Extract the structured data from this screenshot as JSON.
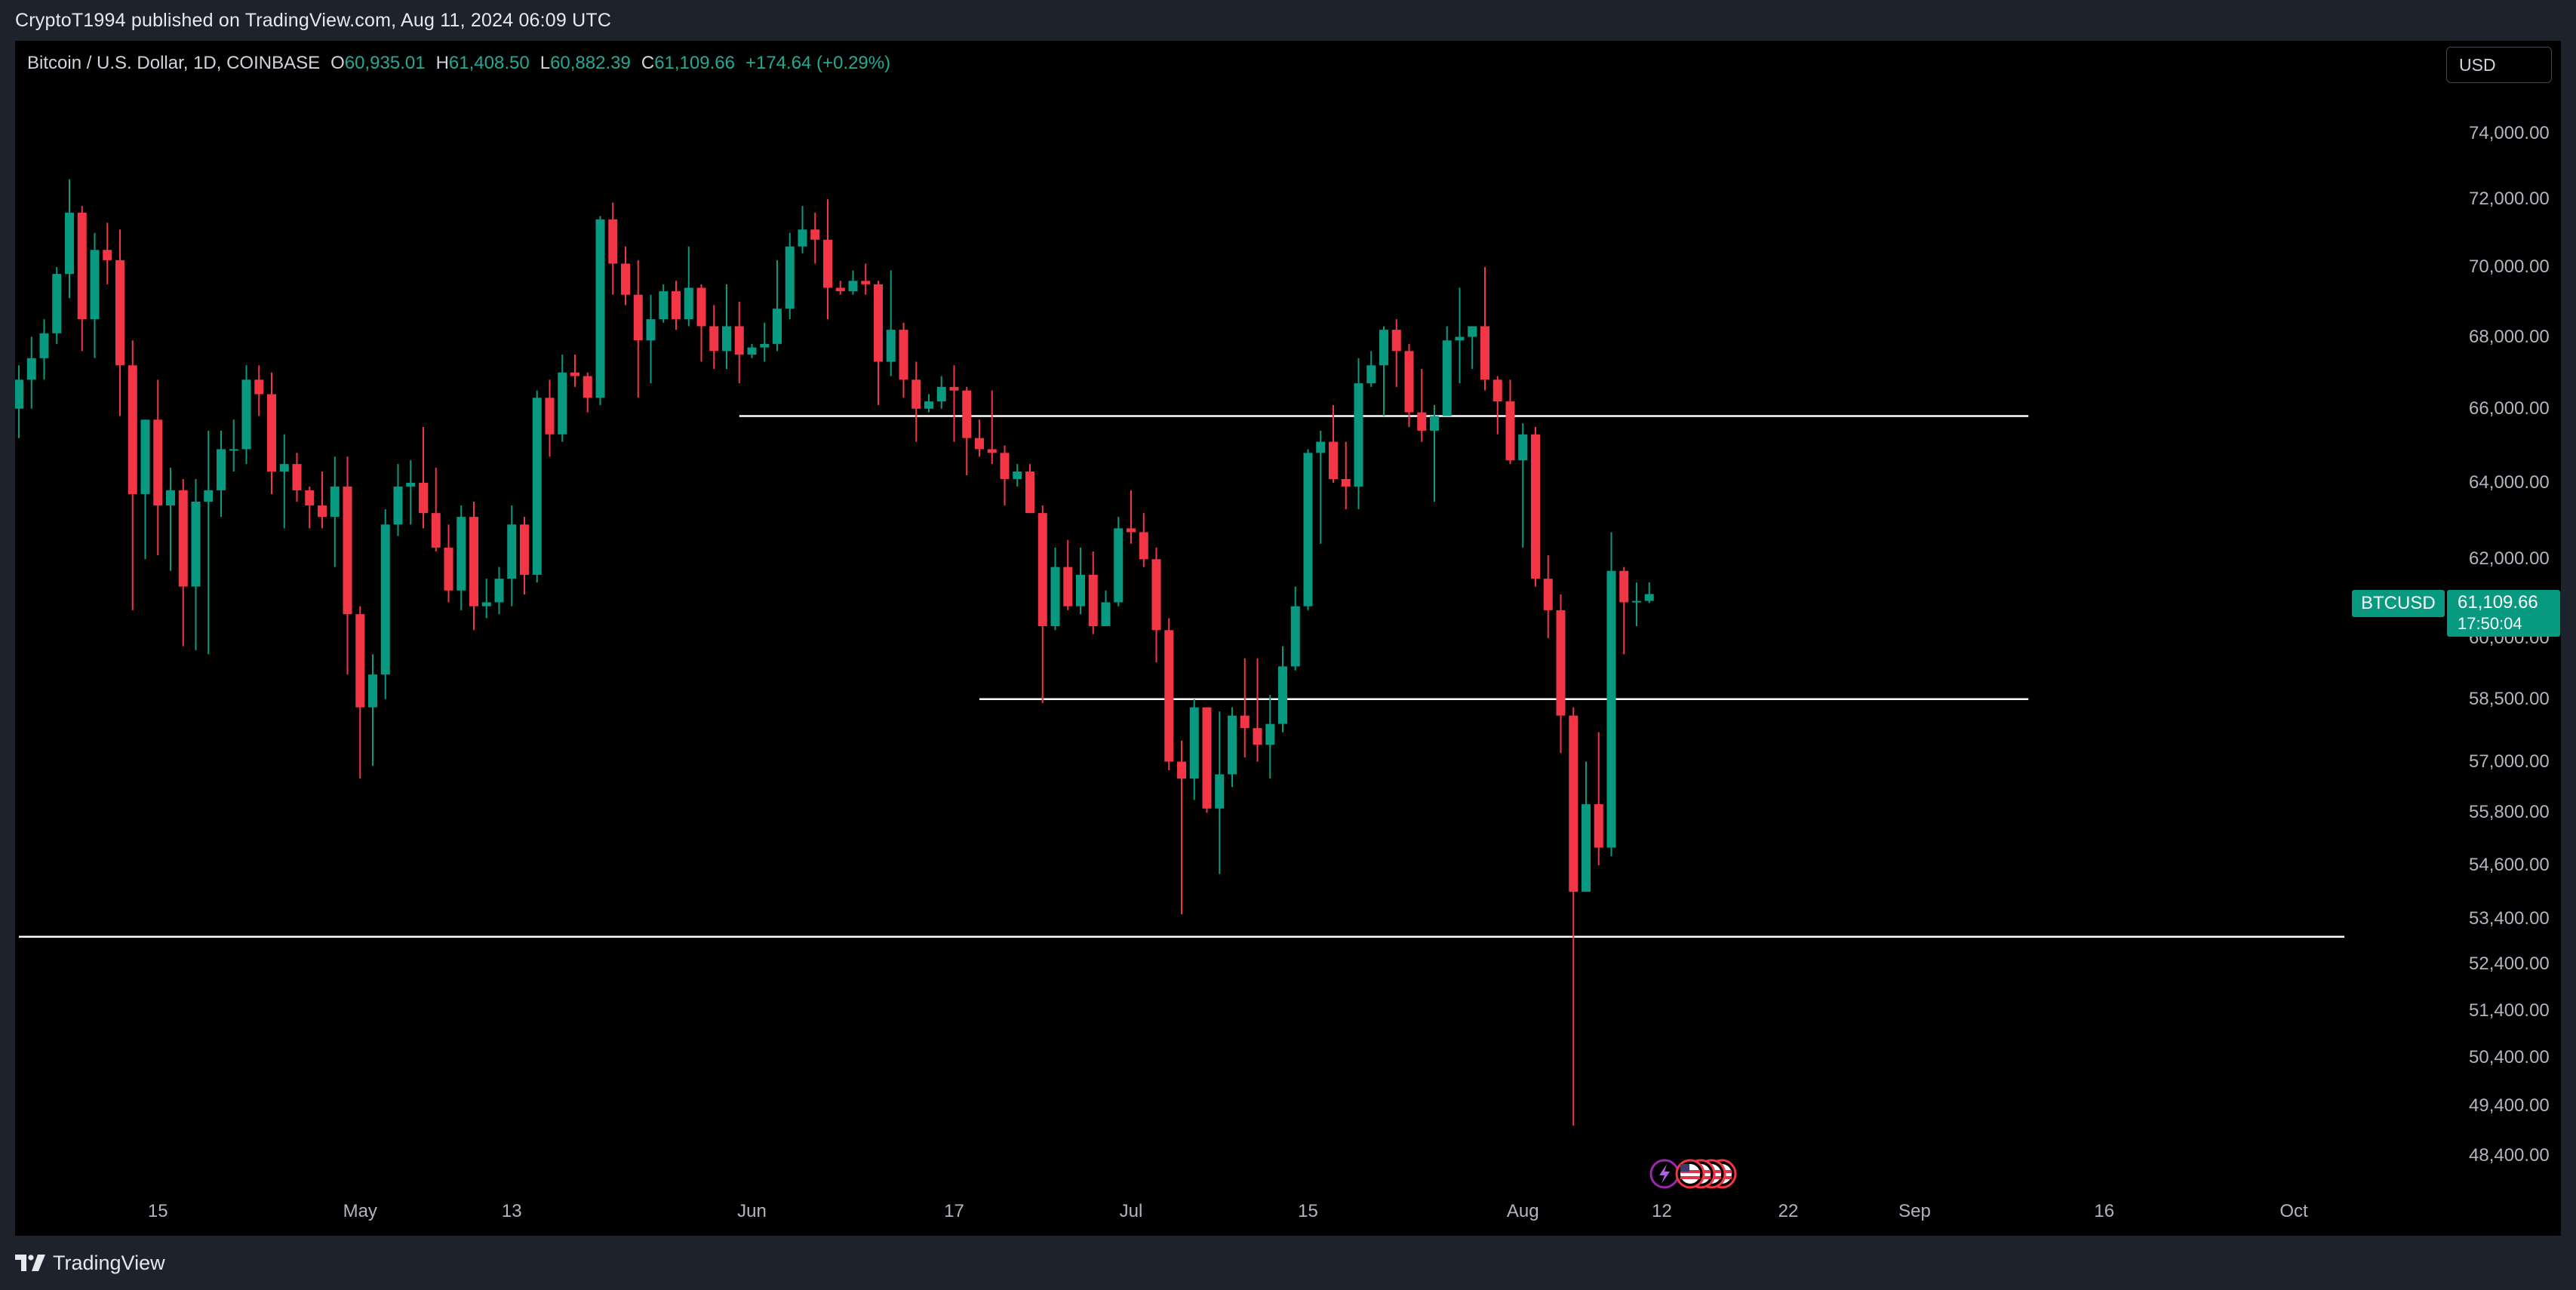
{
  "header": {
    "publisher_line": "CryptoT1994 published on TradingView.com, Aug 11, 2024 06:09 UTC"
  },
  "legend": {
    "symbol": "Bitcoin / U.S. Dollar, 1D, COINBASE",
    "open_label": "O",
    "open": "60,935.01",
    "high_label": "H",
    "high": "61,408.50",
    "low_label": "L",
    "low": "60,882.39",
    "close_label": "C",
    "close": "61,109.66",
    "change": "+174.64 (+0.29%)"
  },
  "currency_button": "USD",
  "last_price": {
    "symbol": "BTCUSD",
    "price": "61,109.66",
    "countdown": "17:50:04"
  },
  "price_axis": [
    "74,000.00",
    "72,000.00",
    "70,000.00",
    "68,000.00",
    "66,000.00",
    "64,000.00",
    "62,000.00",
    "60,000.00",
    "58,500.00",
    "57,000.00",
    "55,800.00",
    "54,600.00",
    "53,400.00",
    "52,400.00",
    "51,400.00",
    "50,400.00",
    "49,400.00",
    "48,400.00"
  ],
  "time_axis": [
    "15",
    "May",
    "13",
    "Jun",
    "17",
    "Jul",
    "15",
    "Aug",
    "12",
    "22",
    "Sep",
    "16",
    "Oct"
  ],
  "footer": {
    "brand": "TradingView"
  },
  "colors": {
    "up": "#089981",
    "down": "#f23645",
    "background": "#000000",
    "frame": "#1e222d",
    "line": "#ffffff"
  },
  "event_icons": [
    "lightning-icon",
    "us-flag-icon",
    "us-flag-icon",
    "us-flag-icon",
    "us-flag-icon"
  ],
  "chart_data": {
    "type": "candlestick",
    "symbol": "BTCUSD",
    "interval": "1D",
    "candles": [
      {
        "date": "2024-04-04",
        "open": 66000,
        "high": 67200,
        "low": 65200,
        "close": 66800
      },
      {
        "date": "2024-04-05",
        "open": 66800,
        "high": 68000,
        "low": 66000,
        "close": 67400
      },
      {
        "date": "2024-04-06",
        "open": 67400,
        "high": 68500,
        "low": 66800,
        "close": 68100
      },
      {
        "date": "2024-04-07",
        "open": 68100,
        "high": 70000,
        "low": 67800,
        "close": 69800
      },
      {
        "date": "2024-04-08",
        "open": 69800,
        "high": 72600,
        "low": 69100,
        "close": 71600
      },
      {
        "date": "2024-04-09",
        "open": 71600,
        "high": 71800,
        "low": 67600,
        "close": 68500
      },
      {
        "date": "2024-04-10",
        "open": 68500,
        "high": 71000,
        "low": 67400,
        "close": 70500
      },
      {
        "date": "2024-04-11",
        "open": 70500,
        "high": 71300,
        "low": 69500,
        "close": 70200
      },
      {
        "date": "2024-04-12",
        "open": 70200,
        "high": 71100,
        "low": 65800,
        "close": 67200
      },
      {
        "date": "2024-04-13",
        "open": 67200,
        "high": 67900,
        "low": 60700,
        "close": 63700
      },
      {
        "date": "2024-04-14",
        "open": 63700,
        "high": 65700,
        "low": 62000,
        "close": 65700
      },
      {
        "date": "2024-04-15",
        "open": 65700,
        "high": 66800,
        "low": 62100,
        "close": 63400
      },
      {
        "date": "2024-04-16",
        "open": 63400,
        "high": 64400,
        "low": 61700,
        "close": 63800
      },
      {
        "date": "2024-04-17",
        "open": 63800,
        "high": 64100,
        "low": 59800,
        "close": 61300
      },
      {
        "date": "2024-04-18",
        "open": 61300,
        "high": 64100,
        "low": 59700,
        "close": 63500
      },
      {
        "date": "2024-04-19",
        "open": 63500,
        "high": 65400,
        "low": 59600,
        "close": 63800
      },
      {
        "date": "2024-04-20",
        "open": 63800,
        "high": 65400,
        "low": 63100,
        "close": 64900
      },
      {
        "date": "2024-04-21",
        "open": 64900,
        "high": 65700,
        "low": 64300,
        "close": 64900
      },
      {
        "date": "2024-04-22",
        "open": 64900,
        "high": 67200,
        "low": 64500,
        "close": 66800
      },
      {
        "date": "2024-04-23",
        "open": 66800,
        "high": 67200,
        "low": 65800,
        "close": 66400
      },
      {
        "date": "2024-04-24",
        "open": 66400,
        "high": 67000,
        "low": 63700,
        "close": 64300
      },
      {
        "date": "2024-04-25",
        "open": 64300,
        "high": 65300,
        "low": 62800,
        "close": 64500
      },
      {
        "date": "2024-04-26",
        "open": 64500,
        "high": 64800,
        "low": 63500,
        "close": 63800
      },
      {
        "date": "2024-04-27",
        "open": 63800,
        "high": 63900,
        "low": 62800,
        "close": 63400
      },
      {
        "date": "2024-04-28",
        "open": 63400,
        "high": 64300,
        "low": 62800,
        "close": 63100
      },
      {
        "date": "2024-04-29",
        "open": 63100,
        "high": 64700,
        "low": 61800,
        "close": 63900
      },
      {
        "date": "2024-04-30",
        "open": 63900,
        "high": 64700,
        "low": 59100,
        "close": 60600
      },
      {
        "date": "2024-05-01",
        "open": 60600,
        "high": 60800,
        "low": 56600,
        "close": 58300
      },
      {
        "date": "2024-05-02",
        "open": 58300,
        "high": 59600,
        "low": 56900,
        "close": 59100
      },
      {
        "date": "2024-05-03",
        "open": 59100,
        "high": 63300,
        "low": 58500,
        "close": 62900
      },
      {
        "date": "2024-05-04",
        "open": 62900,
        "high": 64500,
        "low": 62600,
        "close": 63900
      },
      {
        "date": "2024-05-05",
        "open": 63900,
        "high": 64600,
        "low": 62900,
        "close": 64000
      },
      {
        "date": "2024-05-06",
        "open": 64000,
        "high": 65500,
        "low": 62800,
        "close": 63200
      },
      {
        "date": "2024-05-07",
        "open": 63200,
        "high": 64400,
        "low": 62200,
        "close": 62300
      },
      {
        "date": "2024-05-08",
        "open": 62300,
        "high": 62900,
        "low": 60900,
        "close": 61200
      },
      {
        "date": "2024-05-09",
        "open": 61200,
        "high": 63400,
        "low": 60700,
        "close": 63100
      },
      {
        "date": "2024-05-10",
        "open": 63100,
        "high": 63500,
        "low": 60200,
        "close": 60800
      },
      {
        "date": "2024-05-11",
        "open": 60800,
        "high": 61500,
        "low": 60500,
        "close": 60900
      },
      {
        "date": "2024-05-12",
        "open": 60900,
        "high": 61800,
        "low": 60600,
        "close": 61500
      },
      {
        "date": "2024-05-13",
        "open": 61500,
        "high": 63400,
        "low": 60800,
        "close": 62900
      },
      {
        "date": "2024-05-14",
        "open": 62900,
        "high": 63100,
        "low": 61100,
        "close": 61600
      },
      {
        "date": "2024-05-15",
        "open": 61600,
        "high": 66500,
        "low": 61400,
        "close": 66300
      },
      {
        "date": "2024-05-16",
        "open": 66300,
        "high": 66800,
        "low": 64700,
        "close": 65300
      },
      {
        "date": "2024-05-17",
        "open": 65300,
        "high": 67500,
        "low": 65100,
        "close": 67000
      },
      {
        "date": "2024-05-18",
        "open": 67000,
        "high": 67500,
        "low": 66600,
        "close": 66900
      },
      {
        "date": "2024-05-19",
        "open": 66900,
        "high": 67000,
        "low": 65900,
        "close": 66300
      },
      {
        "date": "2024-05-20",
        "open": 66300,
        "high": 71500,
        "low": 66100,
        "close": 71400
      },
      {
        "date": "2024-05-21",
        "open": 71400,
        "high": 71900,
        "low": 69200,
        "close": 70100
      },
      {
        "date": "2024-05-22",
        "open": 70100,
        "high": 70600,
        "low": 68900,
        "close": 69200
      },
      {
        "date": "2024-05-23",
        "open": 69200,
        "high": 70200,
        "low": 66300,
        "close": 67900
      },
      {
        "date": "2024-05-24",
        "open": 67900,
        "high": 69200,
        "low": 66700,
        "close": 68500
      },
      {
        "date": "2024-05-25",
        "open": 68500,
        "high": 69500,
        "low": 68400,
        "close": 69300
      },
      {
        "date": "2024-05-26",
        "open": 69300,
        "high": 69600,
        "low": 68200,
        "close": 68500
      },
      {
        "date": "2024-05-27",
        "open": 68500,
        "high": 70600,
        "low": 68300,
        "close": 69400
      },
      {
        "date": "2024-05-28",
        "open": 69400,
        "high": 69500,
        "low": 67300,
        "close": 68300
      },
      {
        "date": "2024-05-29",
        "open": 68300,
        "high": 68900,
        "low": 67100,
        "close": 67600
      },
      {
        "date": "2024-05-30",
        "open": 67600,
        "high": 69500,
        "low": 67100,
        "close": 68300
      },
      {
        "date": "2024-05-31",
        "open": 68300,
        "high": 69000,
        "low": 66700,
        "close": 67500
      },
      {
        "date": "2024-06-01",
        "open": 67500,
        "high": 67800,
        "low": 67400,
        "close": 67700
      },
      {
        "date": "2024-06-02",
        "open": 67700,
        "high": 68400,
        "low": 67300,
        "close": 67800
      },
      {
        "date": "2024-06-03",
        "open": 67800,
        "high": 70200,
        "low": 67600,
        "close": 68800
      },
      {
        "date": "2024-06-04",
        "open": 68800,
        "high": 71000,
        "low": 68500,
        "close": 70600
      },
      {
        "date": "2024-06-05",
        "open": 70600,
        "high": 71800,
        "low": 70400,
        "close": 71100
      },
      {
        "date": "2024-06-06",
        "open": 71100,
        "high": 71600,
        "low": 70100,
        "close": 70800
      },
      {
        "date": "2024-06-07",
        "open": 70800,
        "high": 72000,
        "low": 68500,
        "close": 69400
      },
      {
        "date": "2024-06-08",
        "open": 69400,
        "high": 69600,
        "low": 69200,
        "close": 69300
      },
      {
        "date": "2024-06-09",
        "open": 69300,
        "high": 69900,
        "low": 69200,
        "close": 69600
      },
      {
        "date": "2024-06-10",
        "open": 69600,
        "high": 70100,
        "low": 69200,
        "close": 69500
      },
      {
        "date": "2024-06-11",
        "open": 69500,
        "high": 69600,
        "low": 66100,
        "close": 67300
      },
      {
        "date": "2024-06-12",
        "open": 67300,
        "high": 69900,
        "low": 66900,
        "close": 68200
      },
      {
        "date": "2024-06-13",
        "open": 68200,
        "high": 68400,
        "low": 66300,
        "close": 66800
      },
      {
        "date": "2024-06-14",
        "open": 66800,
        "high": 67300,
        "low": 65100,
        "close": 66000
      },
      {
        "date": "2024-06-15",
        "open": 66000,
        "high": 66400,
        "low": 65900,
        "close": 66200
      },
      {
        "date": "2024-06-16",
        "open": 66200,
        "high": 66900,
        "low": 66000,
        "close": 66600
      },
      {
        "date": "2024-06-17",
        "open": 66600,
        "high": 67200,
        "low": 65100,
        "close": 66500
      },
      {
        "date": "2024-06-18",
        "open": 66500,
        "high": 66600,
        "low": 64200,
        "close": 65200
      },
      {
        "date": "2024-06-19",
        "open": 65200,
        "high": 65700,
        "low": 64700,
        "close": 64900
      },
      {
        "date": "2024-06-20",
        "open": 64900,
        "high": 66500,
        "low": 64500,
        "close": 64800
      },
      {
        "date": "2024-06-21",
        "open": 64800,
        "high": 65000,
        "low": 63400,
        "close": 64100
      },
      {
        "date": "2024-06-22",
        "open": 64100,
        "high": 64500,
        "low": 63900,
        "close": 64300
      },
      {
        "date": "2024-06-23",
        "open": 64300,
        "high": 64500,
        "low": 63200,
        "close": 63200
      },
      {
        "date": "2024-06-24",
        "open": 63200,
        "high": 63400,
        "low": 58400,
        "close": 60300
      },
      {
        "date": "2024-06-25",
        "open": 60300,
        "high": 62300,
        "low": 60200,
        "close": 61800
      },
      {
        "date": "2024-06-26",
        "open": 61800,
        "high": 62500,
        "low": 60700,
        "close": 60800
      },
      {
        "date": "2024-06-27",
        "open": 60800,
        "high": 62300,
        "low": 60600,
        "close": 61600
      },
      {
        "date": "2024-06-28",
        "open": 61600,
        "high": 62200,
        "low": 60100,
        "close": 60300
      },
      {
        "date": "2024-06-29",
        "open": 60300,
        "high": 61200,
        "low": 60300,
        "close": 60900
      },
      {
        "date": "2024-06-30",
        "open": 60900,
        "high": 63100,
        "low": 60800,
        "close": 62800
      },
      {
        "date": "2024-07-01",
        "open": 62800,
        "high": 63800,
        "low": 62400,
        "close": 62700
      },
      {
        "date": "2024-07-02",
        "open": 62700,
        "high": 63200,
        "low": 61800,
        "close": 62000
      },
      {
        "date": "2024-07-03",
        "open": 62000,
        "high": 62300,
        "low": 59400,
        "close": 60200
      },
      {
        "date": "2024-07-04",
        "open": 60200,
        "high": 60500,
        "low": 56800,
        "close": 57000
      },
      {
        "date": "2024-07-05",
        "open": 57000,
        "high": 57500,
        "low": 53500,
        "close": 56600
      },
      {
        "date": "2024-07-06",
        "open": 56600,
        "high": 58500,
        "low": 56100,
        "close": 58300
      },
      {
        "date": "2024-07-07",
        "open": 58300,
        "high": 58300,
        "low": 55800,
        "close": 55900
      },
      {
        "date": "2024-07-08",
        "open": 55900,
        "high": 58200,
        "low": 54400,
        "close": 56700
      },
      {
        "date": "2024-07-09",
        "open": 56700,
        "high": 58300,
        "low": 56400,
        "close": 58100
      },
      {
        "date": "2024-07-10",
        "open": 58100,
        "high": 59500,
        "low": 57100,
        "close": 57800
      },
      {
        "date": "2024-07-11",
        "open": 57800,
        "high": 59500,
        "low": 57000,
        "close": 57400
      },
      {
        "date": "2024-07-12",
        "open": 57400,
        "high": 58600,
        "low": 56600,
        "close": 57900
      },
      {
        "date": "2024-07-13",
        "open": 57900,
        "high": 59800,
        "low": 57700,
        "close": 59300
      },
      {
        "date": "2024-07-14",
        "open": 59300,
        "high": 61300,
        "low": 59200,
        "close": 60800
      },
      {
        "date": "2024-07-15",
        "open": 60800,
        "high": 64900,
        "low": 60700,
        "close": 64800
      },
      {
        "date": "2024-07-16",
        "open": 64800,
        "high": 65400,
        "low": 62400,
        "close": 65100
      },
      {
        "date": "2024-07-17",
        "open": 65100,
        "high": 66100,
        "low": 64000,
        "close": 64100
      },
      {
        "date": "2024-07-18",
        "open": 64100,
        "high": 65100,
        "low": 63300,
        "close": 63900
      },
      {
        "date": "2024-07-19",
        "open": 63900,
        "high": 67400,
        "low": 63300,
        "close": 66700
      },
      {
        "date": "2024-07-20",
        "open": 66700,
        "high": 67600,
        "low": 66600,
        "close": 67200
      },
      {
        "date": "2024-07-21",
        "open": 67200,
        "high": 68300,
        "low": 65800,
        "close": 68200
      },
      {
        "date": "2024-07-22",
        "open": 68200,
        "high": 68500,
        "low": 66600,
        "close": 67600
      },
      {
        "date": "2024-07-23",
        "open": 67600,
        "high": 67800,
        "low": 65500,
        "close": 65900
      },
      {
        "date": "2024-07-24",
        "open": 65900,
        "high": 67100,
        "low": 65100,
        "close": 65400
      },
      {
        "date": "2024-07-25",
        "open": 65400,
        "high": 66100,
        "low": 63500,
        "close": 65800
      },
      {
        "date": "2024-07-26",
        "open": 65800,
        "high": 68300,
        "low": 65800,
        "close": 67900
      },
      {
        "date": "2024-07-27",
        "open": 67900,
        "high": 69400,
        "low": 66700,
        "close": 68000
      },
      {
        "date": "2024-07-28",
        "open": 68000,
        "high": 68300,
        "low": 67100,
        "close": 68300
      },
      {
        "date": "2024-07-29",
        "open": 68300,
        "high": 70000,
        "low": 66500,
        "close": 66800
      },
      {
        "date": "2024-07-30",
        "open": 66800,
        "high": 66900,
        "low": 65300,
        "close": 66200
      },
      {
        "date": "2024-07-31",
        "open": 66200,
        "high": 66800,
        "low": 64500,
        "close": 64600
      },
      {
        "date": "2024-08-01",
        "open": 64600,
        "high": 65600,
        "low": 62300,
        "close": 65300
      },
      {
        "date": "2024-08-02",
        "open": 65300,
        "high": 65500,
        "low": 61300,
        "close": 61500
      },
      {
        "date": "2024-08-03",
        "open": 61500,
        "high": 62100,
        "low": 60000,
        "close": 60700
      },
      {
        "date": "2024-08-04",
        "open": 60700,
        "high": 61100,
        "low": 57200,
        "close": 58100
      },
      {
        "date": "2024-08-05",
        "open": 58100,
        "high": 58300,
        "low": 49000,
        "close": 54000
      },
      {
        "date": "2024-08-06",
        "open": 54000,
        "high": 57000,
        "low": 54000,
        "close": 56000
      },
      {
        "date": "2024-08-07",
        "open": 56000,
        "high": 57700,
        "low": 54600,
        "close": 55000
      },
      {
        "date": "2024-08-08",
        "open": 55000,
        "high": 62700,
        "low": 54800,
        "close": 61700
      },
      {
        "date": "2024-08-09",
        "open": 61700,
        "high": 61800,
        "low": 59600,
        "close": 60900
      },
      {
        "date": "2024-08-10",
        "open": 60900,
        "high": 61400,
        "low": 60300,
        "close": 60935
      },
      {
        "date": "2024-08-11",
        "open": 60935.01,
        "high": 61408.5,
        "low": 60882.39,
        "close": 61109.66
      }
    ],
    "horizontal_lines": [
      {
        "price": 65800,
        "from": "2024-05-31",
        "to": "2024-09-10"
      },
      {
        "price": 58500,
        "from": "2024-06-19",
        "to": "2024-09-10"
      },
      {
        "price": 53000,
        "from": "2024-04-04",
        "to": "2024-10-05"
      }
    ],
    "y_axis": {
      "min": 47700,
      "max": 76900,
      "scale": "log"
    },
    "x_axis": {
      "start": "2024-04-04",
      "end": "2024-10-08"
    },
    "grid": false,
    "legend_position": "top-left"
  }
}
